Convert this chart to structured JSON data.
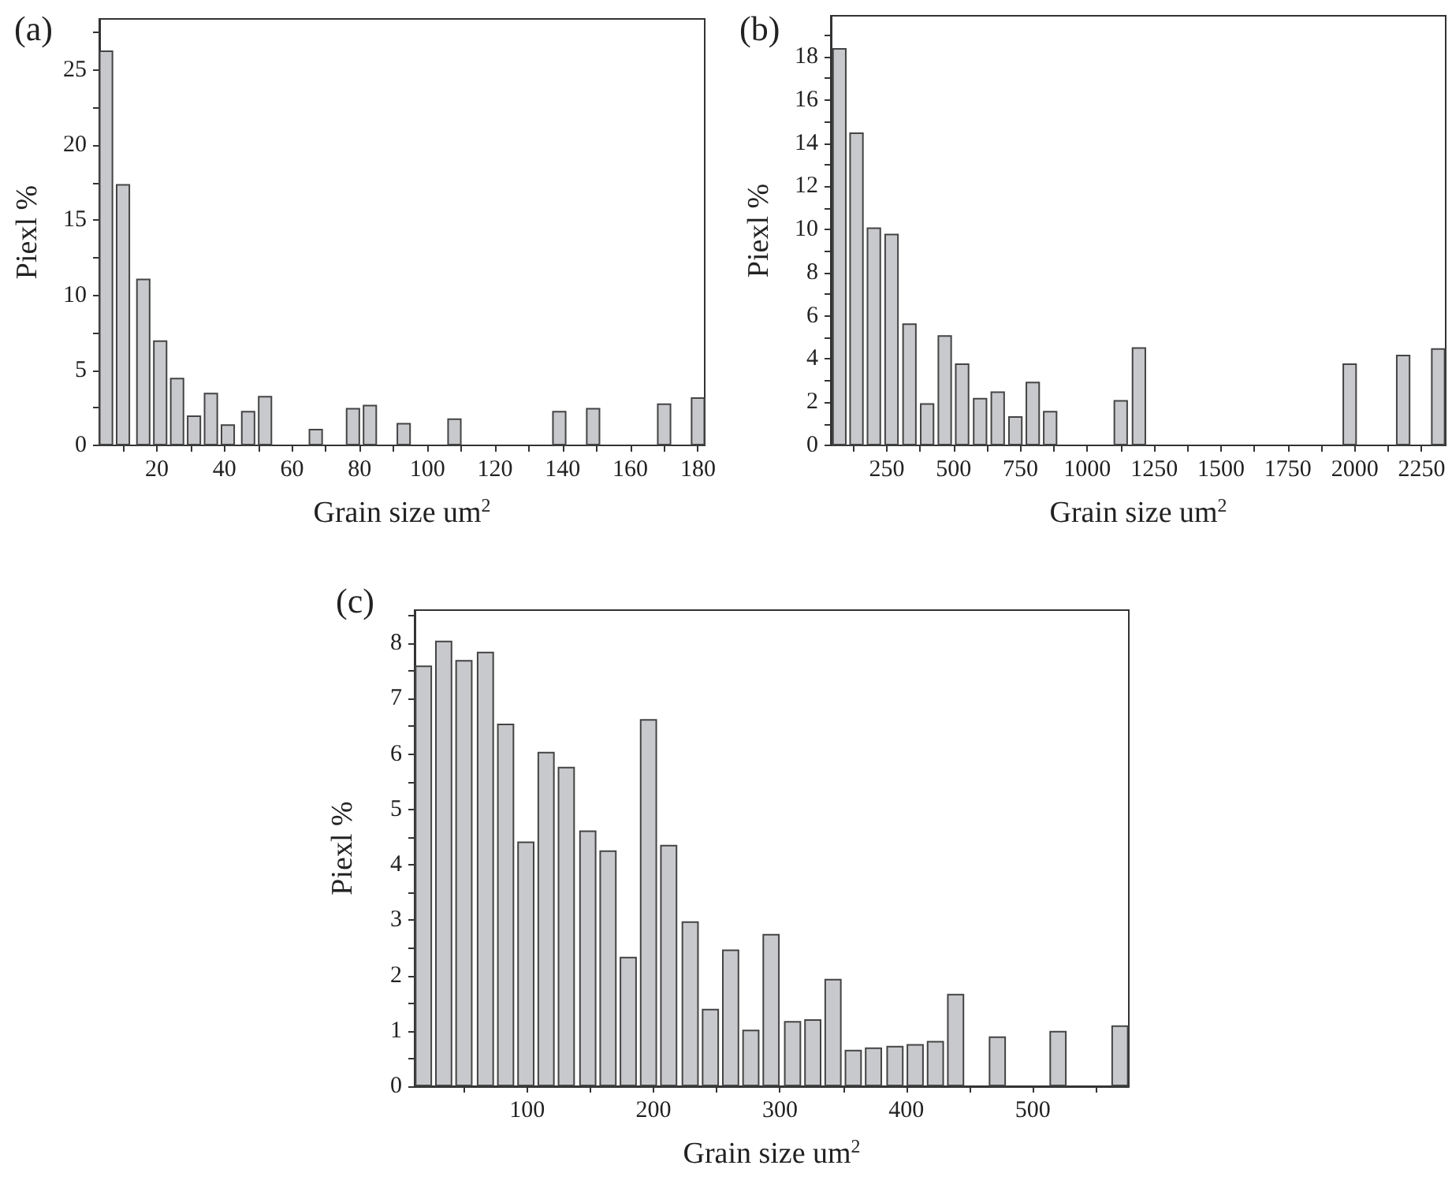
{
  "chart_data": [
    {
      "type": "bar",
      "title": "(a)",
      "xlabel": "Grain size um$^{2}$",
      "ylabel": "Piexl %",
      "x": [
        5,
        10,
        16,
        21,
        26,
        31,
        36,
        41,
        47,
        52,
        67,
        78,
        83,
        93,
        108,
        139,
        149,
        170,
        180
      ],
      "values": [
        26.3,
        17.4,
        11.1,
        7.0,
        4.5,
        2.0,
        3.5,
        1.4,
        2.3,
        3.3,
        1.1,
        2.5,
        2.7,
        1.5,
        1.8,
        2.3,
        2.5,
        2.8,
        3.2
      ],
      "color": "#c8c9cc",
      "xlim": [
        3,
        182
      ],
      "ylim": [
        0,
        28.4
      ],
      "xticks": [
        {
          "value": 10,
          "label": null
        },
        20,
        {
          "value": 30,
          "label": null
        },
        40,
        {
          "value": 50,
          "label": null
        },
        60,
        {
          "value": 70,
          "label": null
        },
        80,
        {
          "value": 90,
          "label": null
        },
        100,
        {
          "value": 110,
          "label": null
        },
        120,
        {
          "value": 130,
          "label": null
        },
        140,
        {
          "value": 150,
          "label": null
        },
        160,
        {
          "value": 170,
          "label": null
        },
        180
      ],
      "yticks": [
        0,
        {
          "value": 2.5,
          "label": null
        },
        5,
        {
          "value": 7.5,
          "label": null
        },
        10,
        {
          "value": 12.5,
          "label": null
        },
        15,
        {
          "value": 17.5,
          "label": null
        },
        20,
        {
          "value": 22.5,
          "label": null
        },
        25,
        {
          "value": 27.5,
          "label": null
        }
      ]
    },
    {
      "type": "bar",
      "title": "(b)",
      "xlabel": "Grain size um$^{2}$",
      "ylabel": "Piexl %",
      "x": [
        73,
        137,
        202,
        268,
        335,
        401,
        467,
        532,
        599,
        665,
        731,
        796,
        861,
        1125,
        1193,
        1981,
        2181,
        2312
      ],
      "values": [
        18.4,
        14.5,
        10.1,
        9.8,
        5.65,
        1.95,
        5.1,
        3.8,
        2.2,
        2.5,
        1.35,
        2.95,
        1.6,
        2.1,
        4.55,
        3.8,
        4.2,
        4.5
      ],
      "color": "#c8c9cc",
      "xlim": [
        41,
        2340
      ],
      "ylim": [
        0,
        19.9
      ],
      "xticks": [
        {
          "value": 125,
          "label": null
        },
        250,
        {
          "value": 375,
          "label": null
        },
        500,
        {
          "value": 625,
          "label": null
        },
        750,
        {
          "value": 875,
          "label": null
        },
        1000,
        {
          "value": 1125,
          "label": null
        },
        1250,
        {
          "value": 1375,
          "label": null
        },
        1500,
        {
          "value": 1625,
          "label": null
        },
        1750,
        {
          "value": 1875,
          "label": null
        },
        2000,
        {
          "value": 2125,
          "label": null
        },
        2250
      ],
      "yticks": [
        0,
        {
          "value": 1,
          "label": null
        },
        2,
        {
          "value": 3,
          "label": null
        },
        4,
        {
          "value": 5,
          "label": null
        },
        6,
        {
          "value": 7,
          "label": null
        },
        8,
        {
          "value": 9,
          "label": null
        },
        10,
        {
          "value": 11,
          "label": null
        },
        12,
        {
          "value": 13,
          "label": null
        },
        14,
        {
          "value": 15,
          "label": null
        },
        16,
        {
          "value": 17,
          "label": null
        },
        18,
        {
          "value": 19,
          "label": null
        }
      ]
    },
    {
      "type": "bar",
      "title": "(c)",
      "xlabel": "Grain size um$^{2}$",
      "ylabel": "Piexl %",
      "x": [
        18,
        34,
        50,
        67,
        83,
        99,
        115,
        131,
        148,
        164,
        180,
        196,
        212,
        229,
        245,
        261,
        277,
        293,
        310,
        326,
        342,
        358,
        374,
        391,
        407,
        423,
        439,
        472,
        520,
        569
      ],
      "values": [
        7.6,
        8.05,
        7.7,
        7.85,
        6.55,
        4.42,
        6.04,
        5.77,
        4.62,
        4.26,
        2.34,
        6.63,
        4.36,
        2.98,
        1.4,
        2.47,
        1.02,
        2.75,
        1.18,
        1.21,
        1.94,
        0.66,
        0.7,
        0.73,
        0.76,
        0.82,
        1.67,
        0.9,
        1.0,
        1.1
      ],
      "color": "#c8c9cc",
      "xlim": [
        11,
        576
      ],
      "ylim": [
        0,
        8.6
      ],
      "xticks": [
        {
          "value": 50,
          "label": null
        },
        100,
        {
          "value": 150,
          "label": null
        },
        200,
        {
          "value": 250,
          "label": null
        },
        300,
        {
          "value": 350,
          "label": null
        },
        400,
        {
          "value": 450,
          "label": null
        },
        500,
        {
          "value": 550,
          "label": null
        }
      ],
      "yticks": [
        0,
        {
          "value": 0.5,
          "label": null
        },
        1,
        {
          "value": 1.5,
          "label": null
        },
        2,
        {
          "value": 2.5,
          "label": null
        },
        3,
        {
          "value": 3.5,
          "label": null
        },
        4,
        {
          "value": 4.5,
          "label": null
        },
        5,
        {
          "value": 5.5,
          "label": null
        },
        6,
        {
          "value": 6.5,
          "label": null
        },
        7,
        {
          "value": 7.5,
          "label": null
        },
        8,
        {
          "value": 8.5,
          "label": null
        }
      ]
    }
  ]
}
